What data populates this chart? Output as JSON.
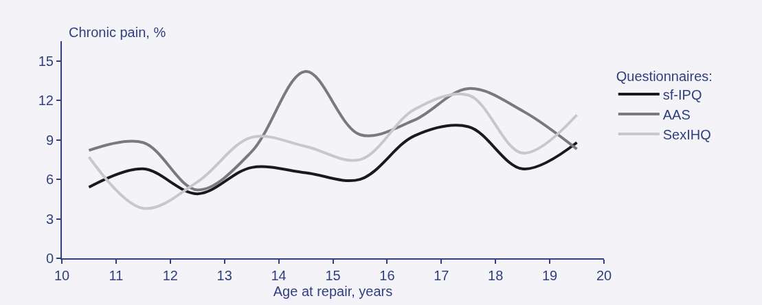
{
  "chart_data": {
    "type": "line",
    "ylabel": "Chronic pain, %",
    "xlabel": "Age at repair, years",
    "legend_title": "Questionnaires:",
    "x": [
      10.5,
      11.5,
      12.5,
      13.5,
      14.5,
      15.5,
      16.5,
      17.5,
      18.5,
      19.5
    ],
    "series": [
      {
        "name": "sf-IPQ",
        "color": "#1a1a1a",
        "values": [
          5.4,
          6.8,
          4.9,
          6.9,
          6.5,
          6.0,
          9.3,
          10.0,
          6.8,
          8.8
        ]
      },
      {
        "name": "AAS",
        "color": "#7a7a7a",
        "values": [
          8.2,
          8.8,
          5.2,
          8.1,
          14.2,
          9.4,
          10.5,
          12.9,
          11.2,
          8.3
        ]
      },
      {
        "name": "SexIHQ",
        "color": "#c8c8c8",
        "values": [
          7.7,
          3.8,
          5.8,
          9.2,
          8.5,
          7.5,
          11.3,
          12.4,
          8.0,
          10.9
        ]
      }
    ],
    "xlim": [
      10,
      20
    ],
    "xticks": [
      10,
      11,
      12,
      13,
      14,
      15,
      16,
      17,
      18,
      19,
      20
    ],
    "ylim": [
      0,
      16.5
    ],
    "yticks": [
      0,
      3,
      6,
      9,
      12,
      15
    ],
    "grid": false,
    "legend": "right",
    "marker": "none",
    "line_style": "solid"
  }
}
